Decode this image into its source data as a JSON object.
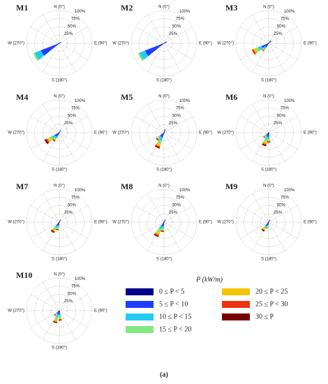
{
  "chart_data": [
    {
      "type": "rose",
      "title": "M1",
      "direction_labels": [
        "N (0°)",
        "E (90°)",
        "S (180°)",
        "W (270°)"
      ],
      "x": [
        240,
        60
      ],
      "series": [
        {
          "values": [
            10,
            4
          ]
        },
        {
          "values": [
            50,
            2
          ]
        },
        {
          "values": [
            20,
            0
          ]
        },
        {
          "values": [
            5,
            0
          ]
        },
        {
          "values": [
            0,
            0
          ]
        },
        {
          "values": [
            0,
            0
          ]
        },
        {
          "values": [
            0,
            0
          ]
        }
      ],
      "rlim": [
        0,
        100
      ],
      "rticks": [
        {
          "value": 25,
          "label": "25%"
        },
        {
          "value": 50,
          "label": "50%"
        },
        {
          "value": 75,
          "label": "75%"
        },
        {
          "value": 100,
          "label": "100%"
        }
      ]
    },
    {
      "type": "rose",
      "title": "M2",
      "direction_labels": [
        "N (0°)",
        "E (90°)",
        "S (180°)",
        "W (270°)"
      ],
      "x": [
        240,
        60
      ],
      "series": [
        {
          "values": [
            12,
            6
          ]
        },
        {
          "values": [
            50,
            3
          ]
        },
        {
          "values": [
            18,
            0
          ]
        },
        {
          "values": [
            5,
            0
          ]
        },
        {
          "values": [
            0,
            0
          ]
        },
        {
          "values": [
            0,
            0
          ]
        },
        {
          "values": [
            0,
            0
          ]
        }
      ],
      "rlim": [
        0,
        100
      ],
      "rticks": [
        {
          "value": 25,
          "label": "25%"
        },
        {
          "value": 50,
          "label": "50%"
        },
        {
          "value": 75,
          "label": "75%"
        },
        {
          "value": 100,
          "label": "100%"
        }
      ]
    },
    {
      "type": "rose",
      "title": "M3",
      "direction_labels": [
        "N (0°)",
        "E (90°)",
        "S (180°)",
        "W (270°)"
      ],
      "x": [
        240,
        220,
        45
      ],
      "series": [
        {
          "values": [
            8,
            6,
            6
          ]
        },
        {
          "values": [
            15,
            8,
            4
          ]
        },
        {
          "values": [
            12,
            6,
            0
          ]
        },
        {
          "values": [
            8,
            4,
            0
          ]
        },
        {
          "values": [
            7,
            3,
            0
          ]
        },
        {
          "values": [
            5,
            2,
            0
          ]
        },
        {
          "values": [
            0,
            0,
            0
          ]
        }
      ],
      "rlim": [
        0,
        100
      ],
      "rticks": [
        {
          "value": 25,
          "label": "25%"
        },
        {
          "value": 50,
          "label": "50%"
        },
        {
          "value": 75,
          "label": "75%"
        },
        {
          "value": 100,
          "label": "100%"
        }
      ]
    },
    {
      "type": "rose",
      "title": "M4",
      "direction_labels": [
        "N (0°)",
        "E (90°)",
        "S (180°)",
        "W (270°)"
      ],
      "x": [
        235,
        215,
        30
      ],
      "series": [
        {
          "values": [
            6,
            6,
            5
          ]
        },
        {
          "values": [
            10,
            8,
            3
          ]
        },
        {
          "values": [
            10,
            6,
            0
          ]
        },
        {
          "values": [
            8,
            4,
            0
          ]
        },
        {
          "values": [
            8,
            3,
            0
          ]
        },
        {
          "values": [
            4,
            2,
            0
          ]
        },
        {
          "values": [
            4,
            1,
            0
          ]
        }
      ],
      "rlim": [
        0,
        100
      ],
      "rticks": [
        {
          "value": 25,
          "label": "25%"
        },
        {
          "value": 50,
          "label": "50%"
        },
        {
          "value": 75,
          "label": "75%"
        },
        {
          "value": 100,
          "label": "100%"
        }
      ]
    },
    {
      "type": "rose",
      "title": "M5",
      "direction_labels": [
        "N (0°)",
        "E (90°)",
        "S (180°)",
        "W (270°)"
      ],
      "x": [
        205,
        225,
        20
      ],
      "series": [
        {
          "values": [
            6,
            6,
            6
          ]
        },
        {
          "values": [
            10,
            8,
            4
          ]
        },
        {
          "values": [
            10,
            6,
            0
          ]
        },
        {
          "values": [
            10,
            4,
            0
          ]
        },
        {
          "values": [
            8,
            3,
            0
          ]
        },
        {
          "values": [
            4,
            2,
            0
          ]
        },
        {
          "values": [
            2,
            1,
            0
          ]
        }
      ],
      "rlim": [
        0,
        100
      ],
      "rticks": [
        {
          "value": 25,
          "label": "25%"
        },
        {
          "value": 50,
          "label": "50%"
        },
        {
          "value": 75,
          "label": "75%"
        },
        {
          "value": 100,
          "label": "100%"
        }
      ]
    },
    {
      "type": "rose",
      "title": "M6",
      "direction_labels": [
        "N (0°)",
        "E (90°)",
        "S (180°)",
        "W (270°)"
      ],
      "x": [
        200,
        180,
        225
      ],
      "series": [
        {
          "values": [
            5,
            5,
            4
          ]
        },
        {
          "values": [
            8,
            7,
            5
          ]
        },
        {
          "values": [
            8,
            6,
            4
          ]
        },
        {
          "values": [
            8,
            5,
            3
          ]
        },
        {
          "values": [
            7,
            4,
            2
          ]
        },
        {
          "values": [
            3,
            2,
            1
          ]
        },
        {
          "values": [
            3,
            1,
            1
          ]
        }
      ],
      "rlim": [
        0,
        100
      ],
      "rticks": [
        {
          "value": 25,
          "label": "25%"
        },
        {
          "value": 50,
          "label": "50%"
        },
        {
          "value": 75,
          "label": "75%"
        },
        {
          "value": 100,
          "label": "100%"
        }
      ]
    },
    {
      "type": "rose",
      "title": "M7",
      "direction_labels": [
        "N (0°)",
        "E (90°)",
        "S (180°)",
        "W (270°)"
      ],
      "x": [
        215,
        195,
        30
      ],
      "series": [
        {
          "values": [
            5,
            5,
            5
          ]
        },
        {
          "values": [
            8,
            6,
            3
          ]
        },
        {
          "values": [
            8,
            5,
            0
          ]
        },
        {
          "values": [
            6,
            4,
            0
          ]
        },
        {
          "values": [
            5,
            3,
            0
          ]
        },
        {
          "values": [
            3,
            1,
            0
          ]
        },
        {
          "values": [
            2,
            1,
            0
          ]
        }
      ],
      "rlim": [
        0,
        100
      ],
      "rticks": [
        {
          "value": 25,
          "label": "25%"
        },
        {
          "value": 50,
          "label": "50%"
        },
        {
          "value": 75,
          "label": "75%"
        },
        {
          "value": 100,
          "label": "100%"
        }
      ]
    },
    {
      "type": "rose",
      "title": "M8",
      "direction_labels": [
        "N (0°)",
        "E (90°)",
        "S (180°)",
        "W (270°)"
      ],
      "x": [
        210,
        190,
        30
      ],
      "series": [
        {
          "values": [
            5,
            5,
            5
          ]
        },
        {
          "values": [
            10,
            7,
            3
          ]
        },
        {
          "values": [
            10,
            6,
            0
          ]
        },
        {
          "values": [
            10,
            5,
            0
          ]
        },
        {
          "values": [
            8,
            4,
            0
          ]
        },
        {
          "values": [
            4,
            2,
            0
          ]
        },
        {
          "values": [
            2,
            1,
            0
          ]
        }
      ],
      "rlim": [
        0,
        100
      ],
      "rticks": [
        {
          "value": 25,
          "label": "25%"
        },
        {
          "value": 50,
          "label": "50%"
        },
        {
          "value": 75,
          "label": "75%"
        },
        {
          "value": 100,
          "label": "100%"
        }
      ]
    },
    {
      "type": "rose",
      "title": "M9",
      "direction_labels": [
        "N (0°)",
        "E (90°)",
        "S (180°)",
        "W (270°)"
      ],
      "x": [
        215,
        195,
        30
      ],
      "series": [
        {
          "values": [
            5,
            5,
            5
          ]
        },
        {
          "values": [
            8,
            5,
            3
          ]
        },
        {
          "values": [
            6,
            4,
            0
          ]
        },
        {
          "values": [
            5,
            3,
            0
          ]
        },
        {
          "values": [
            4,
            2,
            0
          ]
        },
        {
          "values": [
            2,
            1,
            0
          ]
        },
        {
          "values": [
            2,
            0,
            0
          ]
        }
      ],
      "rlim": [
        0,
        100
      ],
      "rticks": [
        {
          "value": 25,
          "label": "25%"
        },
        {
          "value": 50,
          "label": "50%"
        },
        {
          "value": 75,
          "label": "75%"
        },
        {
          "value": 100,
          "label": "100%"
        }
      ]
    },
    {
      "type": "rose",
      "title": "M10",
      "direction_labels": [
        "N (0°)",
        "E (90°)",
        "S (180°)",
        "W (270°)"
      ],
      "x": [
        200,
        175,
        225
      ],
      "series": [
        {
          "values": [
            5,
            5,
            4
          ]
        },
        {
          "values": [
            8,
            7,
            5
          ]
        },
        {
          "values": [
            8,
            6,
            4
          ]
        },
        {
          "values": [
            8,
            5,
            3
          ]
        },
        {
          "values": [
            6,
            4,
            2
          ]
        },
        {
          "values": [
            2,
            2,
            1
          ]
        },
        {
          "values": [
            2,
            1,
            1
          ]
        }
      ],
      "rlim": [
        0,
        100
      ],
      "rticks": [
        {
          "value": 25,
          "label": "25%"
        },
        {
          "value": 50,
          "label": "50%"
        },
        {
          "value": 75,
          "label": "75%"
        },
        {
          "value": 100,
          "label": "100%"
        }
      ]
    }
  ],
  "legend": {
    "title": "P (kW/m)",
    "items": [
      {
        "name": "0 ≤ P < 5",
        "color": "#00008b"
      },
      {
        "name": "5 ≤ P < 10",
        "color": "#1f3fff"
      },
      {
        "name": "10 ≤ P < 15",
        "color": "#22ccee"
      },
      {
        "name": "15 ≤ P < 20",
        "color": "#80e880"
      },
      {
        "name": "20 ≤ P < 25",
        "color": "#f5c400"
      },
      {
        "name": "25 ≤ P < 30",
        "color": "#ee3311"
      },
      {
        "name": "30 ≤ P",
        "color": "#7a0000"
      }
    ]
  },
  "caption": "(a)"
}
